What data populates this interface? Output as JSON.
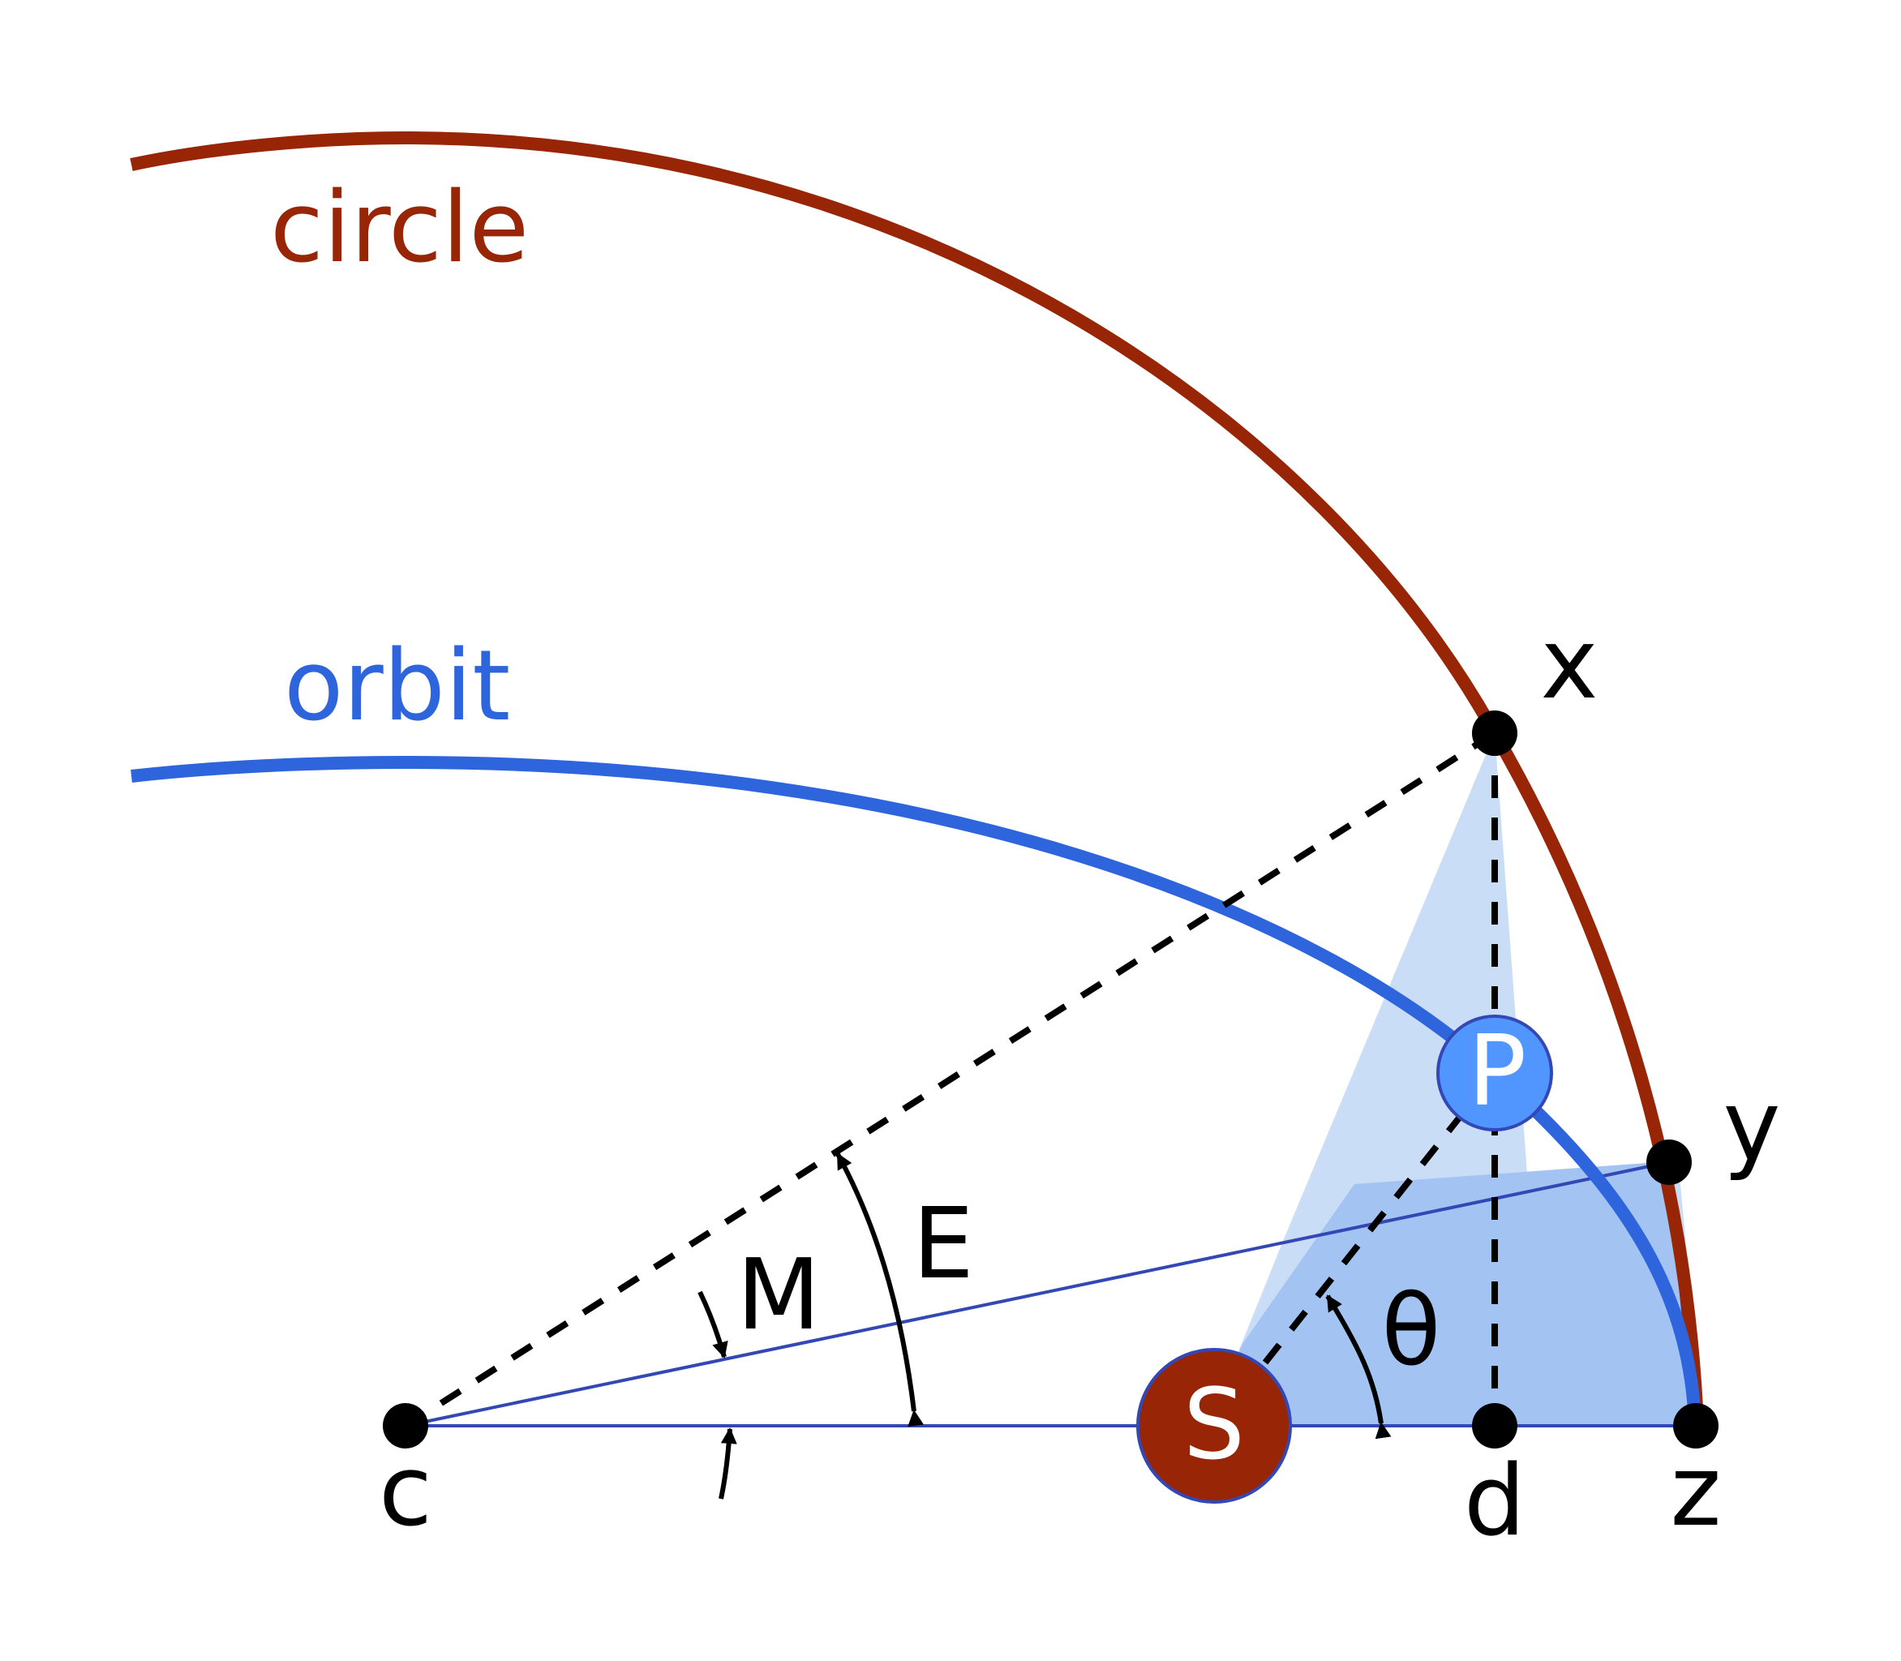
{
  "labels": {
    "circle": "circle",
    "orbit": "orbit",
    "point_x": "x",
    "point_y": "y",
    "point_c": "c",
    "point_d": "d",
    "point_z": "z",
    "angle_E": "E",
    "angle_M": "M",
    "angle_theta": "θ",
    "sun": "S",
    "planet": "P"
  },
  "colors": {
    "circle": "#972506",
    "orbit": "#2f65dc",
    "area_light": "#c9ddf7",
    "area_dark": "#a3c4f3",
    "area_edge": "#3347b5",
    "sun_fill": "#972506",
    "planet_fill": "#5096fe",
    "point": "#000000",
    "label": "#000000",
    "marker_text": "#ffffff"
  }
}
